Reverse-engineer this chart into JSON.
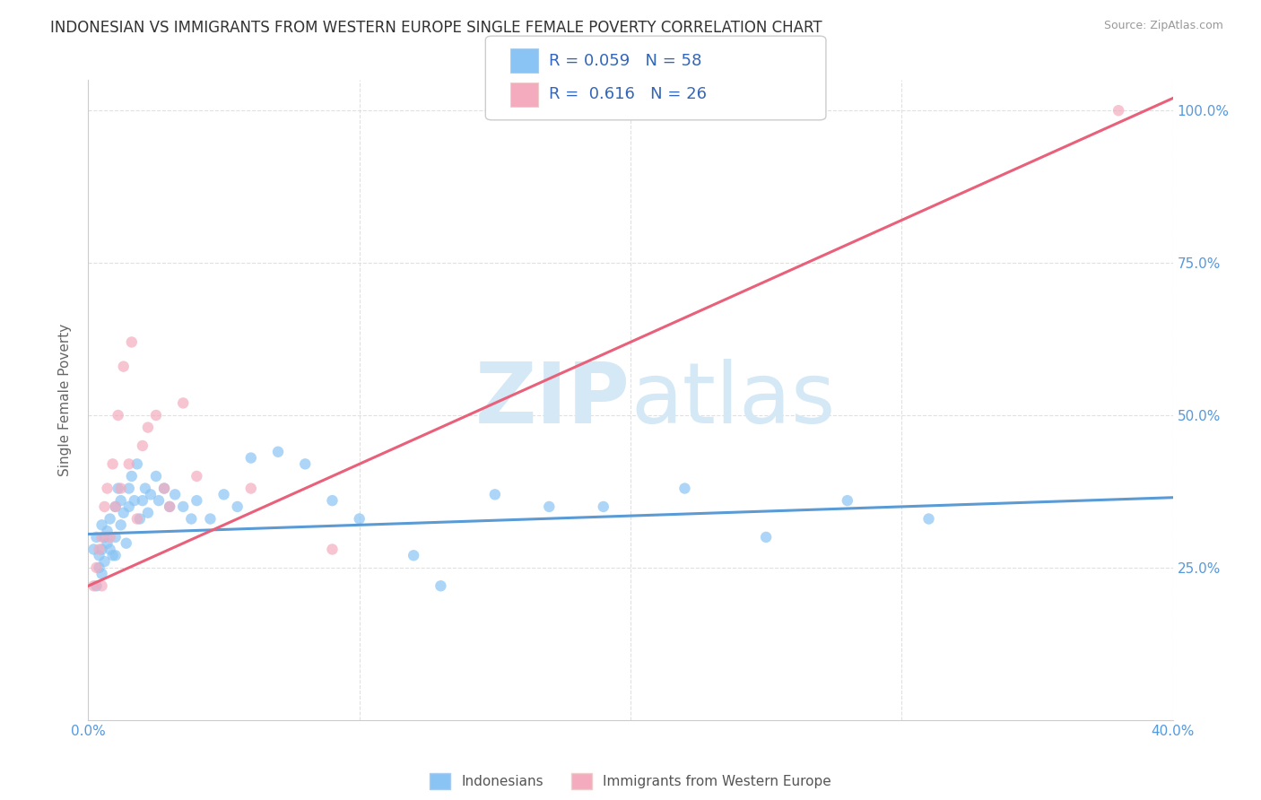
{
  "title": "INDONESIAN VS IMMIGRANTS FROM WESTERN EUROPE SINGLE FEMALE POVERTY CORRELATION CHART",
  "source": "Source: ZipAtlas.com",
  "ylabel": "Single Female Poverty",
  "xlim": [
    0.0,
    0.4
  ],
  "ylim": [
    0.0,
    1.05
  ],
  "r_indonesian": 0.059,
  "n_indonesian": 58,
  "r_western_europe": 0.616,
  "n_western_europe": 26,
  "color_indonesian": "#89C4F4",
  "color_western_europe": "#F4ABBE",
  "color_indonesian_line": "#5B9BD5",
  "color_western_europe_line": "#E8607A",
  "watermark_zip": "ZIP",
  "watermark_atlas": "atlas",
  "watermark_color": "#D5E8F5",
  "legend_label_1": "Indonesians",
  "legend_label_2": "Immigrants from Western Europe",
  "background_color": "#FFFFFF",
  "grid_color": "#DDDDDD",
  "indonesian_x": [
    0.002,
    0.003,
    0.003,
    0.004,
    0.004,
    0.005,
    0.005,
    0.005,
    0.006,
    0.006,
    0.007,
    0.007,
    0.008,
    0.008,
    0.009,
    0.01,
    0.01,
    0.01,
    0.011,
    0.012,
    0.012,
    0.013,
    0.014,
    0.015,
    0.015,
    0.016,
    0.017,
    0.018,
    0.019,
    0.02,
    0.021,
    0.022,
    0.023,
    0.025,
    0.026,
    0.028,
    0.03,
    0.032,
    0.035,
    0.038,
    0.04,
    0.045,
    0.05,
    0.055,
    0.06,
    0.07,
    0.08,
    0.09,
    0.1,
    0.12,
    0.13,
    0.15,
    0.17,
    0.19,
    0.22,
    0.25,
    0.28,
    0.31
  ],
  "indonesian_y": [
    0.28,
    0.22,
    0.3,
    0.25,
    0.27,
    0.32,
    0.28,
    0.24,
    0.3,
    0.26,
    0.29,
    0.31,
    0.33,
    0.28,
    0.27,
    0.35,
    0.3,
    0.27,
    0.38,
    0.36,
    0.32,
    0.34,
    0.29,
    0.38,
    0.35,
    0.4,
    0.36,
    0.42,
    0.33,
    0.36,
    0.38,
    0.34,
    0.37,
    0.4,
    0.36,
    0.38,
    0.35,
    0.37,
    0.35,
    0.33,
    0.36,
    0.33,
    0.37,
    0.35,
    0.43,
    0.44,
    0.42,
    0.36,
    0.33,
    0.27,
    0.22,
    0.37,
    0.35,
    0.35,
    0.38,
    0.3,
    0.36,
    0.33
  ],
  "western_europe_x": [
    0.002,
    0.003,
    0.004,
    0.005,
    0.005,
    0.006,
    0.007,
    0.008,
    0.009,
    0.01,
    0.011,
    0.012,
    0.013,
    0.015,
    0.016,
    0.018,
    0.02,
    0.022,
    0.025,
    0.028,
    0.03,
    0.035,
    0.04,
    0.06,
    0.09,
    0.38
  ],
  "western_europe_y": [
    0.22,
    0.25,
    0.28,
    0.3,
    0.22,
    0.35,
    0.38,
    0.3,
    0.42,
    0.35,
    0.5,
    0.38,
    0.58,
    0.42,
    0.62,
    0.33,
    0.45,
    0.48,
    0.5,
    0.38,
    0.35,
    0.52,
    0.4,
    0.38,
    0.28,
    1.0
  ],
  "indo_line_x0": 0.0,
  "indo_line_y0": 0.305,
  "indo_line_x1": 0.4,
  "indo_line_y1": 0.365,
  "we_line_x0": 0.0,
  "we_line_y0": 0.22,
  "we_line_x1": 0.4,
  "we_line_y1": 1.02
}
